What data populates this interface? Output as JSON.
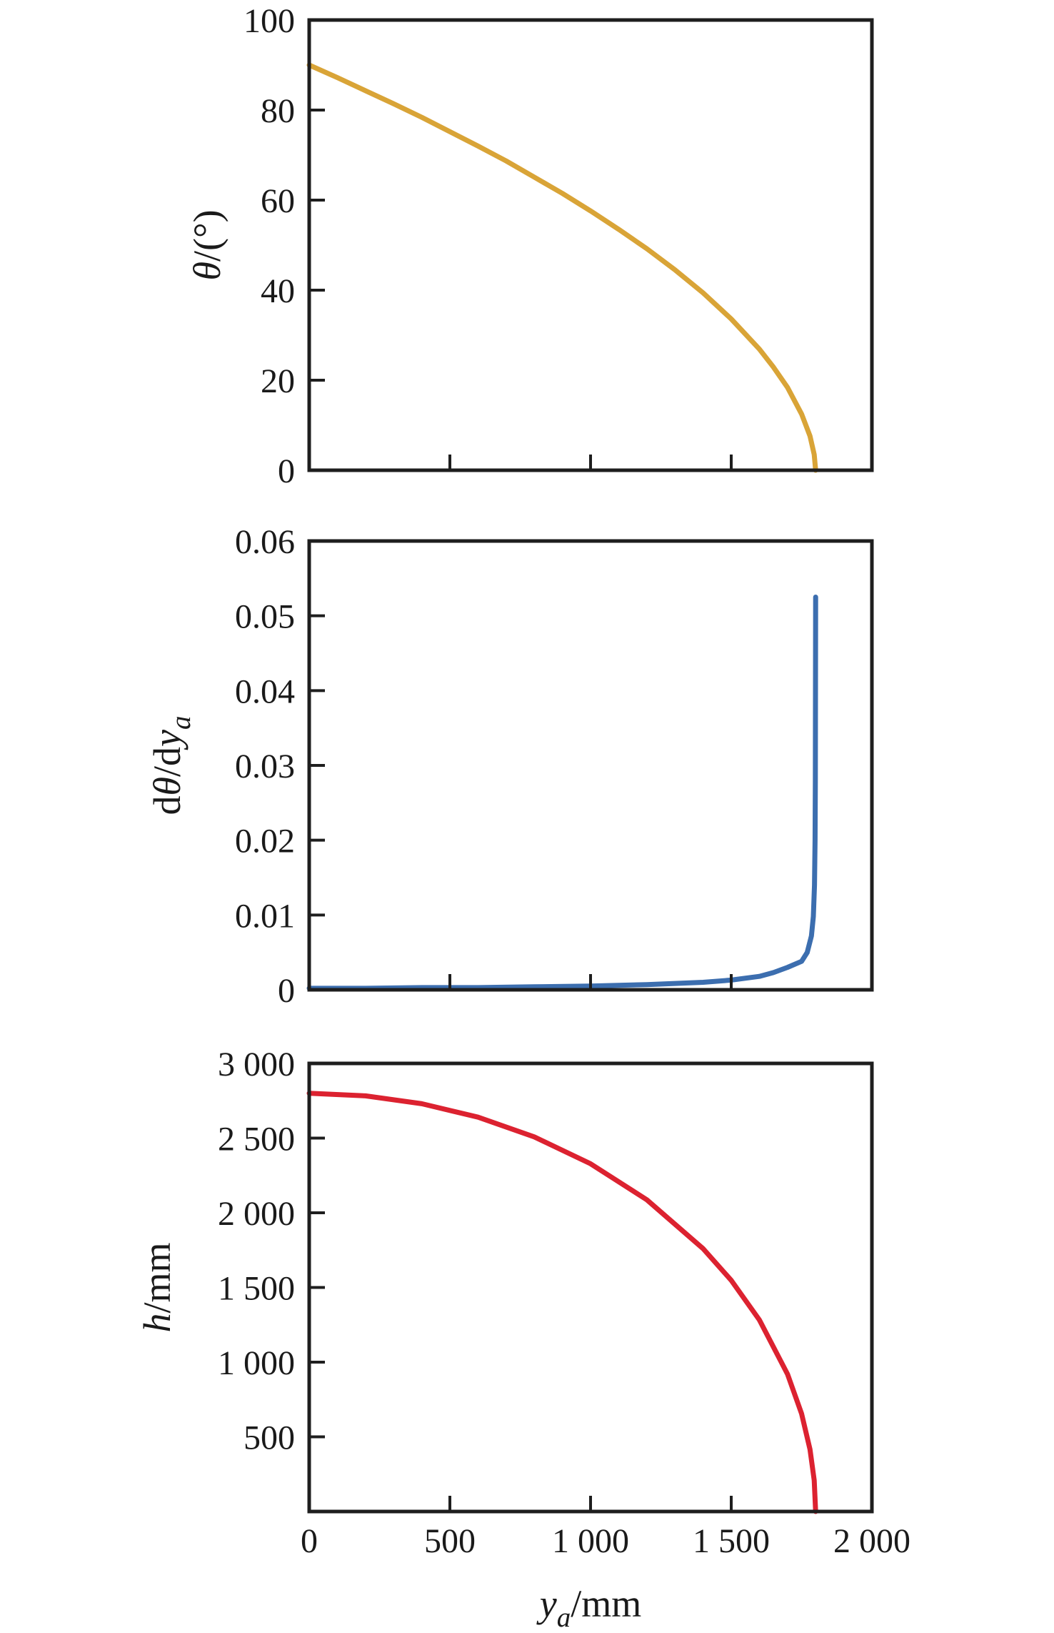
{
  "figure": {
    "background": "#ffffff",
    "axis_color": "#1e1e1e",
    "text_color": "#1a1a1a"
  },
  "chart_data": [
    {
      "name": "theta-vs-ya",
      "type": "line",
      "title": "",
      "ylabel": "θ/(°)",
      "ylabel_parts": [
        {
          "t": "θ",
          "i": 1
        },
        {
          "t": "/(°)"
        }
      ],
      "ylim": [
        0,
        100
      ],
      "yticks": [
        {
          "v": 0,
          "l": "0"
        },
        {
          "v": 20,
          "l": "20"
        },
        {
          "v": 40,
          "l": "40"
        },
        {
          "v": 60,
          "l": "60"
        },
        {
          "v": 80,
          "l": "80"
        },
        {
          "v": 100,
          "l": "100"
        }
      ],
      "xlim": [
        0,
        2000
      ],
      "xticks": [
        {
          "v": 0,
          "l": "0"
        },
        {
          "v": 500,
          "l": "500"
        },
        {
          "v": 1000,
          "l": "1 000"
        },
        {
          "v": 1500,
          "l": "1 500"
        },
        {
          "v": 2000,
          "l": "2 000"
        }
      ],
      "show_x_tick_labels": false,
      "grid": false,
      "legend": "none",
      "series": [
        {
          "name": "theta-curve",
          "color": "#D9A437",
          "width": 7,
          "points": [
            [
              0,
              90
            ],
            [
              100,
              87.2
            ],
            [
              200,
              84.3
            ],
            [
              300,
              81.4
            ],
            [
              400,
              78.4
            ],
            [
              500,
              75.2
            ],
            [
              600,
              72
            ],
            [
              700,
              68.7
            ],
            [
              800,
              65.1
            ],
            [
              900,
              61.5
            ],
            [
              1000,
              57.6
            ],
            [
              1100,
              53.5
            ],
            [
              1200,
              49.2
            ],
            [
              1300,
              44.5
            ],
            [
              1400,
              39.4
            ],
            [
              1500,
              33.6
            ],
            [
              1600,
              26.9
            ],
            [
              1650,
              22.9
            ],
            [
              1700,
              18.4
            ],
            [
              1750,
              12.5
            ],
            [
              1780,
              7.6
            ],
            [
              1795,
              3.5
            ],
            [
              1800,
              0
            ]
          ]
        }
      ]
    },
    {
      "name": "dtheta-dya-vs-ya",
      "type": "line",
      "title": "",
      "ylabel": "dθ/dya",
      "ylabel_parts": [
        {
          "t": "d"
        },
        {
          "t": "θ",
          "i": 1
        },
        {
          "t": "/d"
        },
        {
          "t": "y",
          "i": 1
        },
        {
          "t": "a",
          "i": 1,
          "s": 1
        }
      ],
      "ylim": [
        0,
        0.06
      ],
      "yticks": [
        {
          "v": 0,
          "l": "0"
        },
        {
          "v": 0.01,
          "l": "0.01"
        },
        {
          "v": 0.02,
          "l": "0.02"
        },
        {
          "v": 0.03,
          "l": "0.03"
        },
        {
          "v": 0.04,
          "l": "0.04"
        },
        {
          "v": 0.05,
          "l": "0.05"
        },
        {
          "v": 0.06,
          "l": "0.06"
        }
      ],
      "xlim": [
        0,
        2000
      ],
      "xticks": [
        {
          "v": 0,
          "l": "0"
        },
        {
          "v": 500,
          "l": "500"
        },
        {
          "v": 1000,
          "l": "1 000"
        },
        {
          "v": 1500,
          "l": "1 500"
        },
        {
          "v": 2000,
          "l": "2 000"
        }
      ],
      "show_x_tick_labels": false,
      "grid": false,
      "legend": "none",
      "series": [
        {
          "name": "derivative-curve",
          "color": "#3C6EAF",
          "width": 7,
          "points": [
            [
              0,
              0.0002
            ],
            [
              200,
              0.0002
            ],
            [
              400,
              0.0003
            ],
            [
              600,
              0.0003
            ],
            [
              800,
              0.0004
            ],
            [
              1000,
              0.0005
            ],
            [
              1200,
              0.0007
            ],
            [
              1400,
              0.001
            ],
            [
              1500,
              0.0013
            ],
            [
              1600,
              0.0018
            ],
            [
              1650,
              0.0023
            ],
            [
              1700,
              0.003
            ],
            [
              1750,
              0.0038
            ],
            [
              1770,
              0.005
            ],
            [
              1785,
              0.0072
            ],
            [
              1792,
              0.0098
            ],
            [
              1796,
              0.014
            ],
            [
              1798,
              0.02
            ],
            [
              1799,
              0.028
            ],
            [
              1800,
              0.0525
            ]
          ]
        }
      ]
    },
    {
      "name": "h-vs-ya",
      "type": "line",
      "title": "",
      "ylabel": "h/mm",
      "ylabel_parts": [
        {
          "t": "h",
          "i": 1
        },
        {
          "t": "/mm"
        }
      ],
      "ylim": [
        0,
        3000
      ],
      "yticks": [
        {
          "v": 500,
          "l": "500"
        },
        {
          "v": 1000,
          "l": "1 000"
        },
        {
          "v": 1500,
          "l": "1 500"
        },
        {
          "v": 2000,
          "l": "2 000"
        },
        {
          "v": 2500,
          "l": "2 500"
        },
        {
          "v": 3000,
          "l": "3 000"
        }
      ],
      "xlim": [
        0,
        2000
      ],
      "xticks": [
        {
          "v": 0,
          "l": "0"
        },
        {
          "v": 500,
          "l": "500"
        },
        {
          "v": 1000,
          "l": "1 000"
        },
        {
          "v": 1500,
          "l": "1 500"
        },
        {
          "v": 2000,
          "l": "2 000"
        }
      ],
      "show_x_tick_labels": true,
      "xlabel": "ya/mm",
      "xlabel_parts": [
        {
          "t": "y",
          "i": 1
        },
        {
          "t": "a",
          "i": 1,
          "s": 1
        },
        {
          "t": "/mm"
        }
      ],
      "grid": false,
      "legend": "none",
      "series": [
        {
          "name": "h-curve",
          "color": "#DC2230",
          "width": 7,
          "points": [
            [
              0,
              2800
            ],
            [
              200,
              2783
            ],
            [
              400,
              2730
            ],
            [
              600,
              2640
            ],
            [
              800,
              2508
            ],
            [
              1000,
              2328
            ],
            [
              1200,
              2087
            ],
            [
              1400,
              1760
            ],
            [
              1500,
              1548
            ],
            [
              1600,
              1283
            ],
            [
              1700,
              920
            ],
            [
              1750,
              655
            ],
            [
              1780,
              416
            ],
            [
              1795,
              209
            ],
            [
              1800,
              0
            ]
          ]
        }
      ]
    }
  ]
}
